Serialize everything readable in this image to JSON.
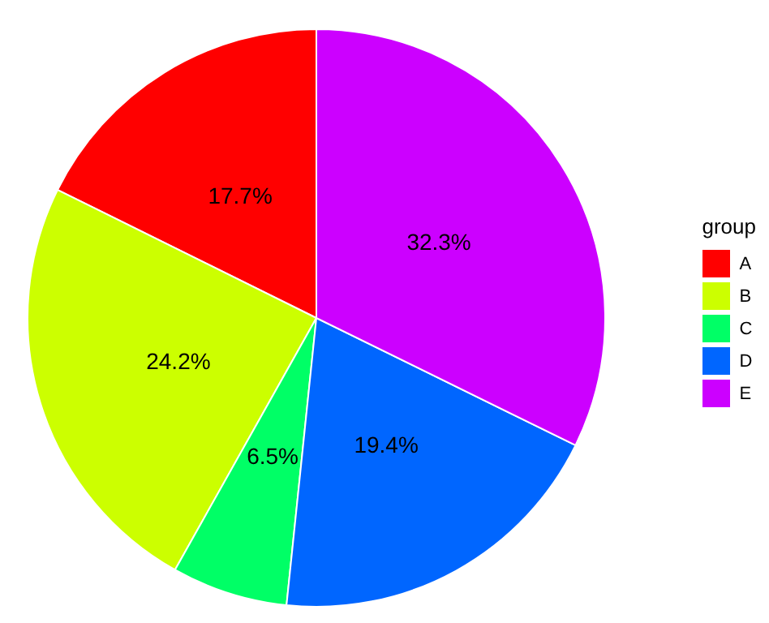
{
  "chart_data": {
    "type": "pie",
    "categories": [
      "A",
      "B",
      "C",
      "D",
      "E"
    ],
    "values": [
      17.7,
      24.2,
      6.5,
      19.4,
      32.3
    ],
    "colors": [
      "#ff0000",
      "#ccff00",
      "#00ff66",
      "#0066ff",
      "#cc00ff"
    ],
    "value_labels": [
      "17.7%",
      "24.2%",
      "6.5%",
      "19.4%",
      "32.3%"
    ],
    "legend_title": "group",
    "legend": "right"
  }
}
